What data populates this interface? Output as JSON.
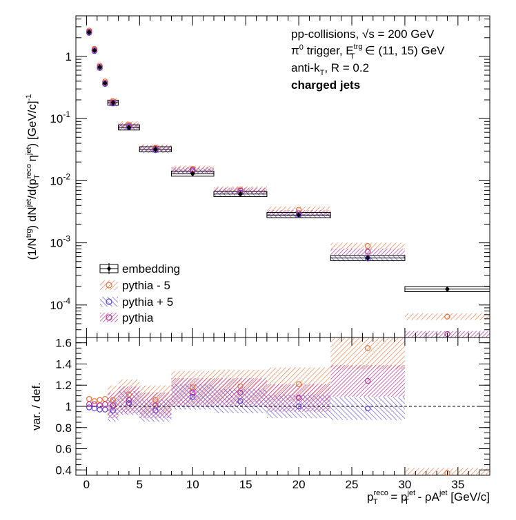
{
  "chart_data": [
    {
      "type": "scatter",
      "panel": "spectrum",
      "yscale": "log",
      "ylim": [
        3e-05,
        4.5
      ],
      "xlim": [
        -1,
        38
      ],
      "ylabel_parts": {
        "a": "(1/N",
        "a_sup": "trg",
        "b": ") dN",
        "b_sup": "jet",
        "c": "/d(p",
        "c_sup": "reco",
        "c_sub": "T",
        "d": " η",
        "d_sup": "jet",
        "e": ") [GeV/c]",
        "e_sup": "-1"
      },
      "y_ticks": [
        {
          "value": 0.0001,
          "base": "10",
          "exp": "-4"
        },
        {
          "value": 0.001,
          "base": "10",
          "exp": "-3"
        },
        {
          "value": 0.01,
          "base": "10",
          "exp": "-2"
        },
        {
          "value": 0.1,
          "base": "10",
          "exp": "-1"
        },
        {
          "value": 1,
          "base": "1",
          "exp": ""
        }
      ],
      "annotations": {
        "line1": "pp-collisions, √s = 200 GeV",
        "line2_a": "π",
        "line2_a_sup": "0",
        "line2_b": " trigger, E",
        "line2_b_sup": "trg",
        "line2_b_sub": "T",
        "line2_c": " ∈ (11, 15) GeV",
        "line3_a": "anti-k",
        "line3_a_sub": "T",
        "line3_b": ", R = 0.2",
        "line4": "charged jets"
      },
      "legend": {
        "placement": "bottom-left",
        "entries": [
          "embedding",
          "pythia - 5",
          "pythia + 5",
          "pythia"
        ]
      },
      "bins": [
        {
          "xlo": 0,
          "xhi": 0.5,
          "x": 0.25,
          "embedding": 2.45,
          "pythia_m5": 2.6,
          "pythia_p5": 2.4,
          "pythia": 2.5
        },
        {
          "xlo": 0.5,
          "xhi": 1.0,
          "x": 0.75,
          "embedding": 1.25,
          "pythia_m5": 1.32,
          "pythia_p5": 1.22,
          "pythia": 1.27
        },
        {
          "xlo": 1.0,
          "xhi": 1.5,
          "x": 1.25,
          "embedding": 0.67,
          "pythia_m5": 0.71,
          "pythia_p5": 0.65,
          "pythia": 0.68
        },
        {
          "xlo": 1.5,
          "xhi": 2.0,
          "x": 1.75,
          "embedding": 0.37,
          "pythia_m5": 0.395,
          "pythia_p5": 0.36,
          "pythia": 0.375
        },
        {
          "xlo": 2.0,
          "xhi": 3.0,
          "x": 2.5,
          "embedding": 0.18,
          "pythia_m5": 0.19,
          "pythia_p5": 0.175,
          "pythia": 0.182
        },
        {
          "xlo": 3.0,
          "xhi": 5.0,
          "x": 4.0,
          "embedding": 0.072,
          "pythia_m5": 0.08,
          "pythia_p5": 0.073,
          "pythia": 0.076
        },
        {
          "xlo": 5.0,
          "xhi": 8.0,
          "x": 6.5,
          "embedding": 0.032,
          "pythia_m5": 0.034,
          "pythia_p5": 0.031,
          "pythia": 0.033
        },
        {
          "xlo": 8.0,
          "xhi": 12.0,
          "x": 10.0,
          "embedding": 0.013,
          "pythia_m5": 0.0155,
          "pythia_p5": 0.0142,
          "pythia": 0.0148
        },
        {
          "xlo": 12.0,
          "xhi": 17.0,
          "x": 14.5,
          "embedding": 0.0061,
          "pythia_m5": 0.0072,
          "pythia_p5": 0.0064,
          "pythia": 0.0069
        },
        {
          "xlo": 17.0,
          "xhi": 23.0,
          "x": 20.0,
          "embedding": 0.0028,
          "pythia_m5": 0.0034,
          "pythia_p5": 0.0028,
          "pythia": 0.003
        },
        {
          "xlo": 23.0,
          "xhi": 30.0,
          "x": 26.5,
          "embedding": 0.00057,
          "pythia_m5": 0.00089,
          "pythia_p5": 0.00056,
          "pythia": 0.00072
        },
        {
          "xlo": 30.0,
          "xhi": 38.0,
          "x": 34.0,
          "embedding": 0.00018,
          "pythia_m5": 6.5e-05,
          "pythia_p5": null,
          "pythia": 3.4e-05
        }
      ]
    },
    {
      "type": "scatter",
      "panel": "ratio",
      "ylabel": "var. / def.",
      "xlabel_parts": {
        "a": "p",
        "a_sup": "reco",
        "a_sub": "T",
        "b": " = p",
        "b_sup": "jet",
        "b_sub": "T",
        "c": " - ρA",
        "c_sup": "jet",
        "d": " [GeV/c]"
      },
      "xlim": [
        -1,
        38
      ],
      "ylim": [
        0.35,
        1.65
      ],
      "x_ticks": [
        "0",
        "5",
        "10",
        "15",
        "20",
        "25",
        "30",
        "35"
      ],
      "y_ticks": [
        "0.4",
        "0.6",
        "0.8",
        "1",
        "1.2",
        "1.4",
        "1.6"
      ],
      "reference_line": 1,
      "bins": [
        {
          "xlo": 0,
          "xhi": 0.5,
          "x": 0.25,
          "pythia_m5": 1.07,
          "pythia_p5": 0.99,
          "pythia": 1.02
        },
        {
          "xlo": 0.5,
          "xhi": 1.0,
          "x": 0.75,
          "pythia_m5": 1.05,
          "pythia_p5": 0.98,
          "pythia": 1.02
        },
        {
          "xlo": 1.0,
          "xhi": 1.5,
          "x": 1.25,
          "pythia_m5": 1.06,
          "pythia_p5": 0.97,
          "pythia": 1.01
        },
        {
          "xlo": 1.5,
          "xhi": 2.0,
          "x": 1.75,
          "pythia_m5": 1.07,
          "pythia_p5": 0.97,
          "pythia": 1.02
        },
        {
          "xlo": 2.0,
          "xhi": 3.0,
          "x": 2.5,
          "pythia_m5": 1.06,
          "pythia_p5": 0.96,
          "pythia": 1.01
        },
        {
          "xlo": 3.0,
          "xhi": 5.0,
          "x": 4.0,
          "pythia_m5": 1.11,
          "pythia_p5": 1.03,
          "pythia": 1.06
        },
        {
          "xlo": 5.0,
          "xhi": 8.0,
          "x": 6.5,
          "pythia_m5": 1.06,
          "pythia_p5": 0.96,
          "pythia": 1.01
        },
        {
          "xlo": 8.0,
          "xhi": 12.0,
          "x": 10.0,
          "pythia_m5": 1.18,
          "pythia_p5": 1.09,
          "pythia": 1.13
        },
        {
          "xlo": 12.0,
          "xhi": 17.0,
          "x": 14.5,
          "pythia_m5": 1.19,
          "pythia_p5": 1.05,
          "pythia": 1.13
        },
        {
          "xlo": 17.0,
          "xhi": 23.0,
          "x": 20.0,
          "pythia_m5": 1.21,
          "pythia_p5": 1.0,
          "pythia": 1.08
        },
        {
          "xlo": 23.0,
          "xhi": 30.0,
          "x": 26.5,
          "pythia_m5": 1.55,
          "pythia_p5": 0.98,
          "pythia": 1.24
        },
        {
          "xlo": 30.0,
          "xhi": 38.0,
          "x": 34.0,
          "pythia_m5": 0.37,
          "pythia_p5": null,
          "pythia": null
        }
      ]
    }
  ],
  "colors": {
    "embedding": "#000000",
    "pythia_m5": "#e8703a",
    "pythia_p5": "#5a3fd8",
    "pythia": "#b0339a",
    "reference_line": "#000000"
  }
}
